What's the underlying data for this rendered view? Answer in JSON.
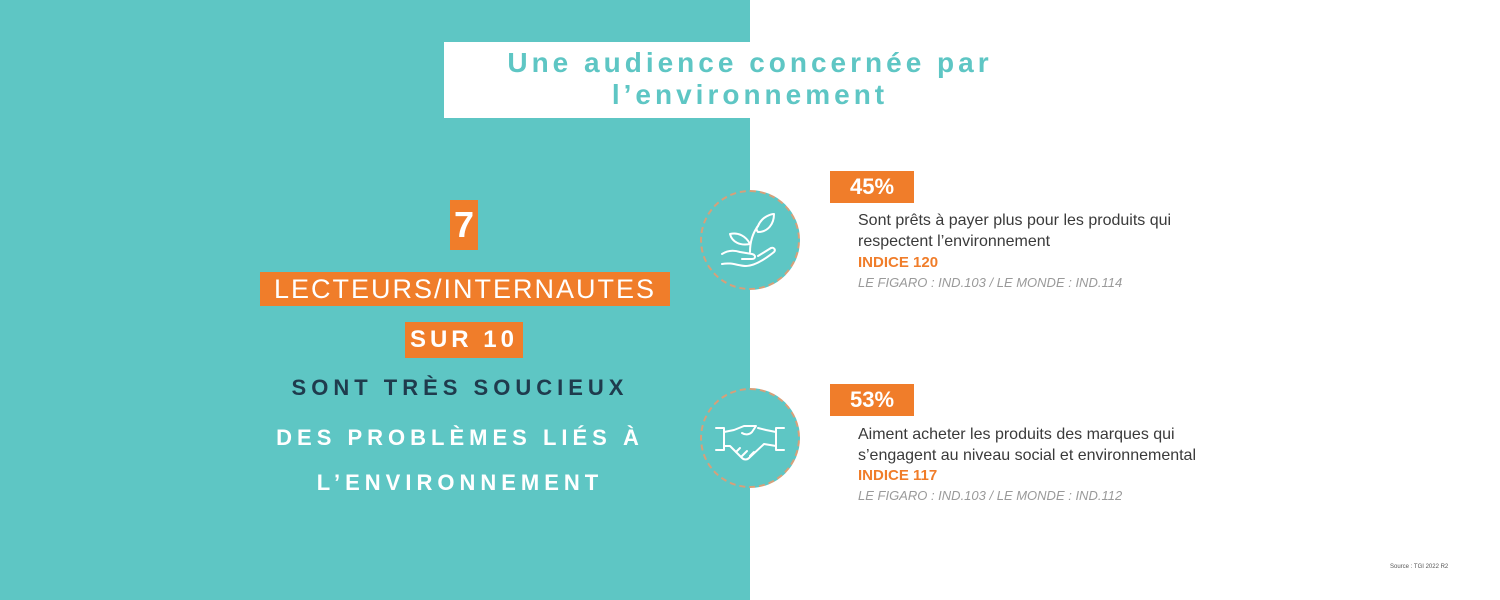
{
  "title": {
    "line1": "Une audience concernée par",
    "line2": "l’environnement"
  },
  "headline": {
    "number": "7",
    "audience": "LECTEURS/INTERNAUTES",
    "ratio": "SUR 10",
    "statement_line1": "SONT TRÈS SOUCIEUX",
    "statement_line2": "DES PROBLÈMES LIÉS À",
    "statement_line3": "L’ENVIRONNEMENT"
  },
  "stats": [
    {
      "icon": "plant-in-hand-icon",
      "percent": "45%",
      "desc_line1": "Sont prêts à payer plus pour les produits qui",
      "desc_line2": "respectent l’environnement",
      "indice": "INDICE 120",
      "comparison": "LE FIGARO : IND.103 / LE MONDE : IND.114"
    },
    {
      "icon": "handshake-icon",
      "percent": "53%",
      "desc_line1": "Aiment acheter les produits des marques qui",
      "desc_line2": "s’engagent au niveau social et environnemental",
      "indice": "INDICE 117",
      "comparison": "LE FIGARO : IND.103 / LE MONDE : IND.112"
    }
  ],
  "source": "Source : TGI 2022 R2",
  "colors": {
    "teal": "#5ec6c4",
    "orange": "#f07d2a",
    "navy": "#1f3b4d"
  }
}
